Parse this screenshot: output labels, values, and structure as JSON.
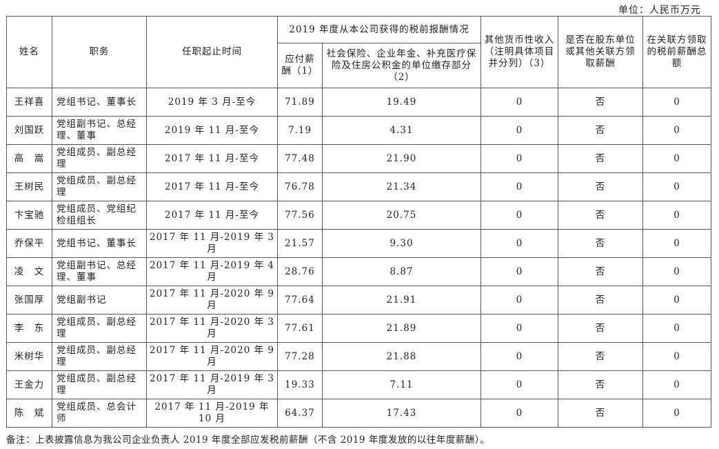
{
  "unit_label": "单位：人民币万元",
  "headers": {
    "name": "姓名",
    "position": "职务",
    "term": "任职起止时间",
    "group": "2019 年度从本公司获得的税前报酬情况",
    "salary": "应付薪酬（1）",
    "insurance": "社会保险、企业年金、补充医疗保险及住房公积金的单位缴存部分（2）",
    "other_income": "其他货币性收入（注明具体项目并分列）（3）",
    "shareholder_paid": "是否在股东单位或其他关联方领取薪酬",
    "related_total": "在关联方领取的税前薪酬总额"
  },
  "rows": [
    {
      "name": "王祥喜",
      "position": "党组书记、董事长",
      "term": "2019 年 3 月-至今",
      "salary": "71.89",
      "insurance": "19.49",
      "other": "0",
      "shareholder": "否",
      "related": "0"
    },
    {
      "name": "刘国跃",
      "position": "党组副书记、总经理、董事",
      "term": "2019 年 11 月-至今",
      "salary": "7.19",
      "insurance": "4.31",
      "other": "0",
      "shareholder": "否",
      "related": "0"
    },
    {
      "name": "高　嵩",
      "position": "党组成员、副总经理",
      "term": "2017 年 11 月-至今",
      "salary": "77.48",
      "insurance": "21.90",
      "other": "0",
      "shareholder": "否",
      "related": "0"
    },
    {
      "name": "王树民",
      "position": "党组成员、副总经理",
      "term": "2017 年 11 月-至今",
      "salary": "76.78",
      "insurance": "21.34",
      "other": "0",
      "shareholder": "否",
      "related": "0"
    },
    {
      "name": "卞宝驰",
      "position": "党组成员、党组纪检组组长",
      "term": "2017 年 11 月-至今",
      "salary": "77.56",
      "insurance": "20.75",
      "other": "0",
      "shareholder": "否",
      "related": "0"
    },
    {
      "name": "乔保平",
      "position": "党组书记、董事长",
      "term": "2017 年 11 月-2019 年 3 月",
      "salary": "21.57",
      "insurance": "9.30",
      "other": "0",
      "shareholder": "否",
      "related": "0"
    },
    {
      "name": "凌　文",
      "position": "党组副书记、总经理、董事",
      "term": "2017 年 11 月-2019 年 4 月",
      "salary": "28.76",
      "insurance": "8.87",
      "other": "0",
      "shareholder": "否",
      "related": "0"
    },
    {
      "name": "张国厚",
      "position": "党组副书记",
      "term": "2017 年 11 月-2020 年 9 月",
      "salary": "77.64",
      "insurance": "21.91",
      "other": "0",
      "shareholder": "否",
      "related": "0"
    },
    {
      "name": "李　东",
      "position": "党组成员、副总经理",
      "term": "2017 年 11 月-2020 年 3 月",
      "salary": "77.61",
      "insurance": "21.89",
      "other": "0",
      "shareholder": "否",
      "related": "0"
    },
    {
      "name": "米树华",
      "position": "党组成员、副总经理",
      "term": "2017 年 11 月-2020 年 9 月",
      "salary": "77.28",
      "insurance": "21.88",
      "other": "0",
      "shareholder": "否",
      "related": "0"
    },
    {
      "name": "王金力",
      "position": "党组成员、副总经理",
      "term": "2017 年 11 月-2019 年 3 月",
      "salary": "19.33",
      "insurance": "7.11",
      "other": "0",
      "shareholder": "否",
      "related": "0"
    },
    {
      "name": "陈　斌",
      "position": "党组成员、总会计师",
      "term": "2017 年 11 月-2019 年 10 月",
      "salary": "64.37",
      "insurance": "17.43",
      "other": "0",
      "shareholder": "否",
      "related": "0"
    }
  ],
  "note": "备注：上表披露信息为我公司企业负责人 2019 年度全部应发税前薪酬（不含 2019 年度发放的以往年度薪酬）。"
}
